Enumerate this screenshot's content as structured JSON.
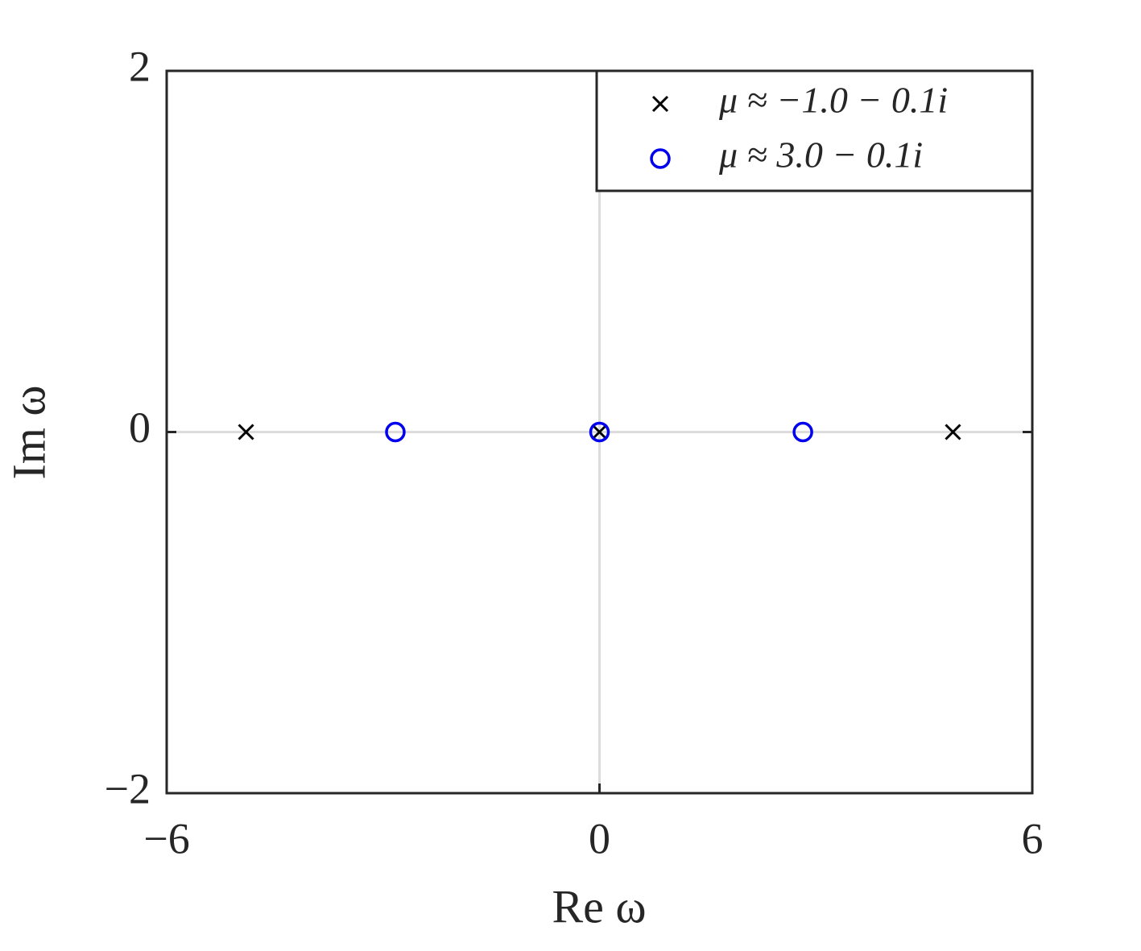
{
  "chart_data": {
    "type": "scatter",
    "xlabel": "Re ω",
    "ylabel": "Im ω",
    "xlim": [
      -6,
      6
    ],
    "ylim": [
      -2,
      2
    ],
    "xticks": [
      {
        "value": -6,
        "label": "−6"
      },
      0,
      6
    ],
    "yticks": [
      {
        "value": -2,
        "label": "−2"
      },
      0,
      2
    ],
    "zero_lines": true,
    "legend": "upper right",
    "series": [
      {
        "name": "μ ≈ −1.0 − 0.1i",
        "color": "#000000",
        "marker": "x",
        "x": [
          -4.9,
          0,
          4.9
        ],
        "values": [
          0,
          0,
          0
        ]
      },
      {
        "name": "μ ≈ 3.0 − 0.1i",
        "color": "#0000ee",
        "marker": "o",
        "x": [
          -2.83,
          0,
          2.82
        ],
        "values": [
          0,
          0,
          0
        ]
      }
    ]
  }
}
